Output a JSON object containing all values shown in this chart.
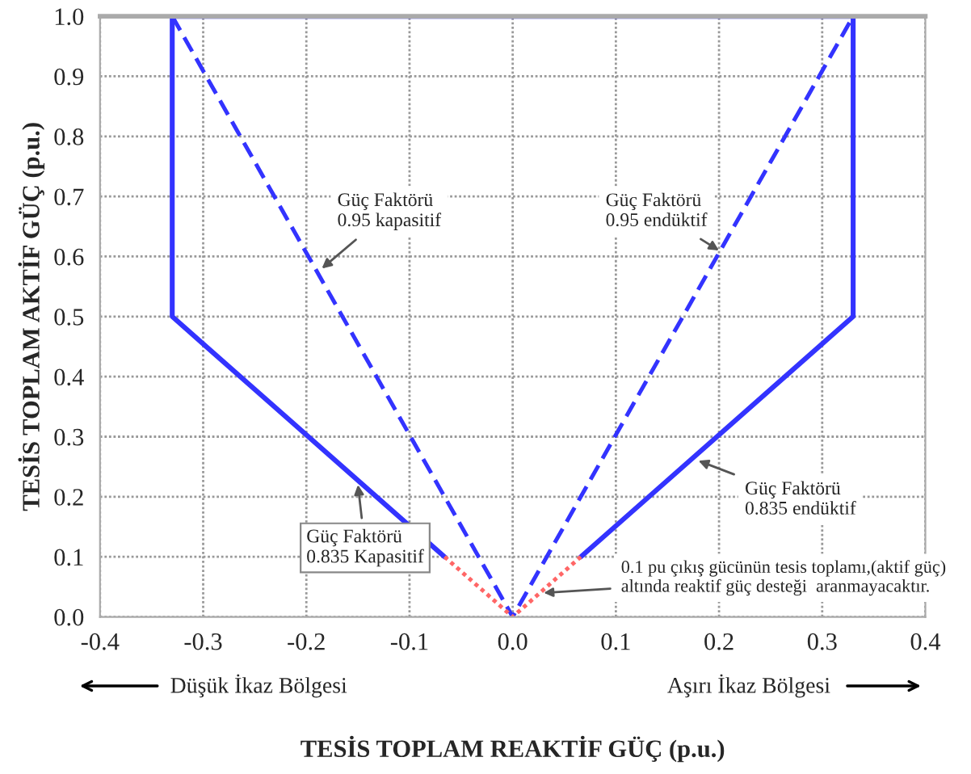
{
  "chart_data": {
    "type": "line",
    "xlabel": "TESİS TOPLAM REAKTİF GÜÇ (p.u.)",
    "ylabel": "TESİS TOPLAM AKTİF GÜÇ (p.u.)",
    "series": [
      {
        "color": "#3333ff",
        "line_style": "solid",
        "x": [
          -0.066,
          -0.33,
          -0.33,
          0.33,
          0.33,
          0.066
        ],
        "values": [
          0.1,
          0.5,
          1.0,
          1.0,
          0.5,
          0.1
        ]
      },
      {
        "color": "#3333ff",
        "line_style": "dashed",
        "x": [
          -0.33,
          0.0,
          0.33
        ],
        "values": [
          1.0,
          0.0,
          1.0
        ]
      },
      {
        "color": "#ff6666",
        "line_style": "dotted",
        "x": [
          -0.066,
          0.0,
          0.066
        ],
        "values": [
          0.1,
          0.0,
          0.1
        ]
      }
    ],
    "xlim": [
      -0.4,
      0.4
    ],
    "xticks": [
      -0.4,
      -0.3,
      -0.2,
      -0.1,
      {
        "value": 0.0,
        "label": "0.0"
      },
      0.1,
      0.2,
      0.3,
      0.4
    ],
    "ylim": [
      0.0,
      1.0
    ],
    "yticks": [
      {
        "value": 0.0,
        "label": "0.0"
      },
      0.1,
      0.2,
      0.3,
      0.4,
      0.5,
      0.6,
      0.7,
      0.8,
      0.9,
      {
        "value": 1.0,
        "label": "1.0"
      }
    ],
    "grid": true,
    "legend": false,
    "marker": "none",
    "annotations": [
      {
        "text": "Güç Faktörü\n0.95 kapasitif",
        "x": -0.185,
        "y": 0.58
      },
      {
        "text": "Güç Faktörü\n0.95 endüktif",
        "x": 0.2,
        "y": 0.61
      },
      {
        "text": "Güç Faktörü\n0.835 Kapasitif",
        "x": -0.15,
        "y": 0.22
      },
      {
        "text": "Güç Faktörü\n0.835 endüktif",
        "x": 0.18,
        "y": 0.26
      },
      {
        "text": "0.1 pu çıkış gücünün tesis toplamı,(aktif güç)\naltında reaktif güç desteği  aranmayacaktır.",
        "x": 0.03,
        "y": 0.04
      },
      "Düşük İkaz Bölgesi",
      "Aşırı İkaz Bölgesi"
    ]
  }
}
